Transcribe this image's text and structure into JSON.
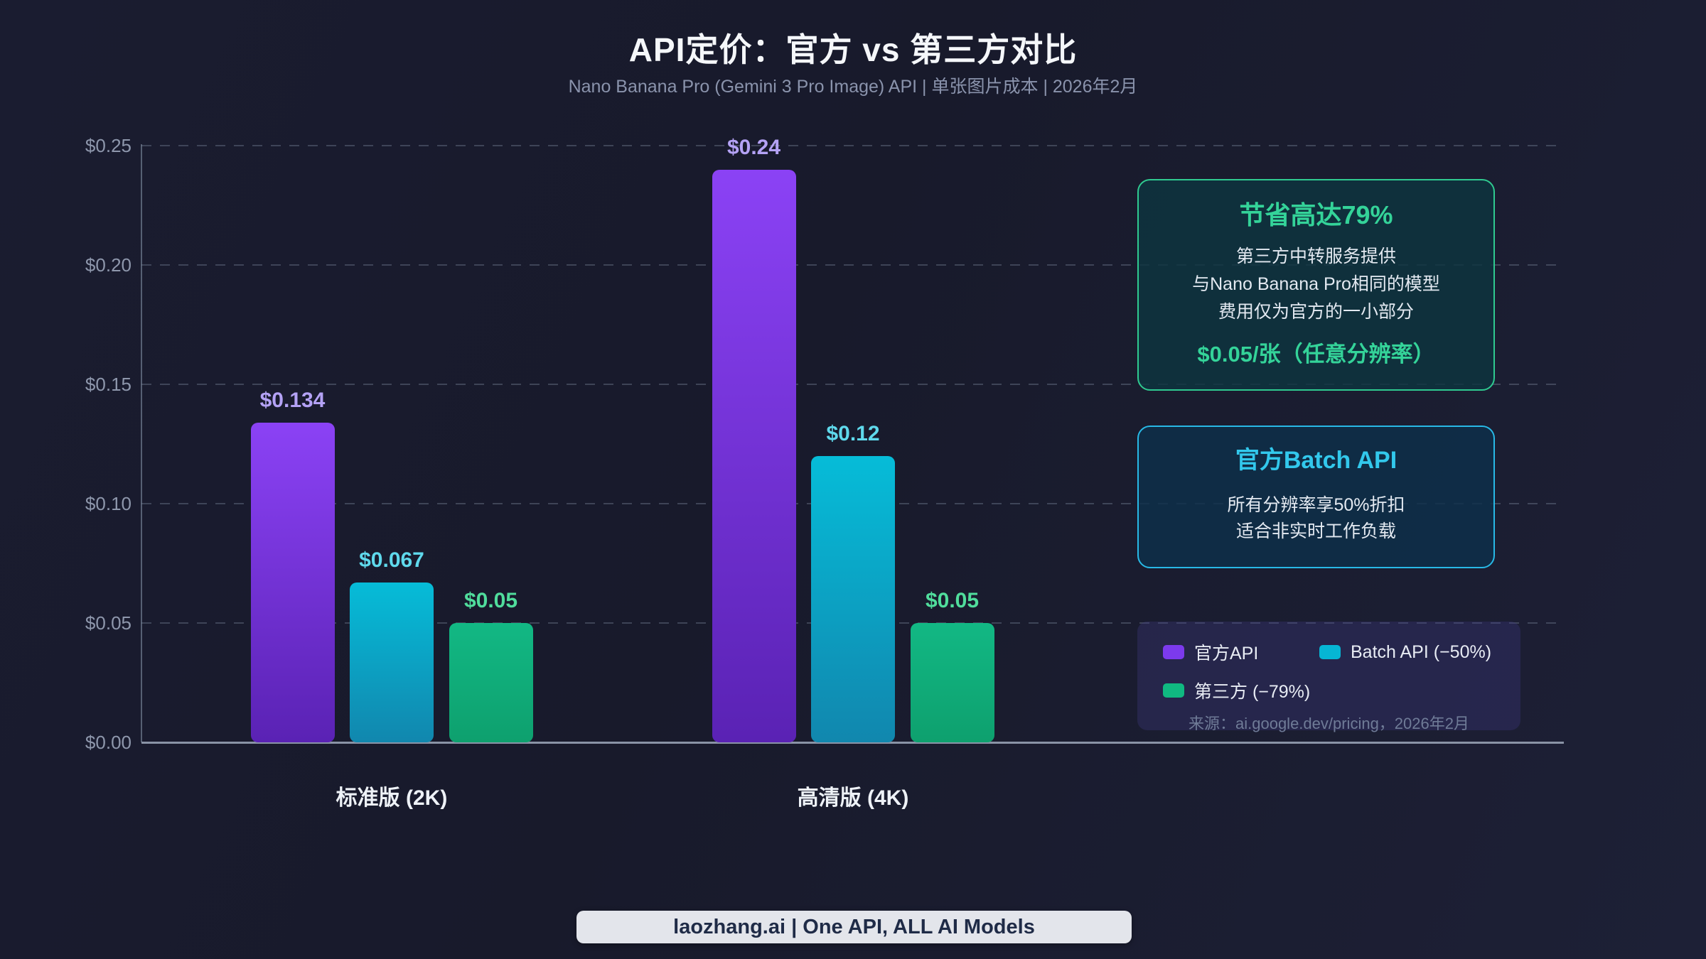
{
  "chart_data": {
    "type": "bar",
    "title": "API定价：官方 vs 第三方对比",
    "subtitle": "Nano Banana Pro (Gemini 3 Pro Image) API | 单张图片成本 | 2026年2月",
    "categories": [
      "标准版 (2K)",
      "高清版 (4K)"
    ],
    "series": [
      {
        "name": "官方API",
        "key": "official",
        "values": [
          0.134,
          0.24
        ],
        "labels": [
          "$0.134",
          "$0.24"
        ],
        "color_top": "#8b42f5",
        "color_bottom": "#5a22b4",
        "label_color": "#b4a2f5"
      },
      {
        "name": "Batch API (−50%)",
        "key": "batch",
        "values": [
          0.067,
          0.12
        ],
        "labels": [
          "$0.067",
          "$0.12"
        ],
        "color_top": "#06bcd8",
        "color_bottom": "#1187ae",
        "label_color": "#5fd9ec"
      },
      {
        "name": "第三方 (−79%)",
        "key": "third",
        "values": [
          0.05,
          0.05
        ],
        "labels": [
          "$0.05",
          "$0.05"
        ],
        "color_top": "#12b884",
        "color_bottom": "#0ea06e",
        "label_color": "#50dd9c"
      }
    ],
    "xlabel": "",
    "ylabel": "",
    "ylim": [
      0,
      0.25
    ],
    "yticks": [
      {
        "value": 0.0,
        "label": "$0.00"
      },
      {
        "value": 0.05,
        "label": "$0.05"
      },
      {
        "value": 0.1,
        "label": "$0.10"
      },
      {
        "value": 0.15,
        "label": "$0.15"
      },
      {
        "value": 0.2,
        "label": "$0.20"
      },
      {
        "value": 0.25,
        "label": "$0.25"
      }
    ],
    "grid": "horizontal-dashed",
    "legend_position": "bottom-right"
  },
  "info_boxes": [
    {
      "title": "节省高达79%",
      "lines": [
        "第三方中转服务提供",
        "与Nano Banana Pro相同的模型",
        "费用仅为官方的一小部分"
      ],
      "highlight": "$0.05/张（任意分辨率）",
      "accent": "#34d399",
      "border": "#2fca90"
    },
    {
      "title": "官方Batch API",
      "lines": [
        "所有分辨率享50%折扣",
        "适合非实时工作负载"
      ],
      "highlight": "",
      "accent": "#32c8ec",
      "border": "#28b9e6"
    }
  ],
  "legend": {
    "items": [
      {
        "label": "官方API",
        "color": "#7c3aed"
      },
      {
        "label": "Batch API (−50%)",
        "color": "#06b6d4"
      },
      {
        "label": "第三方 (−79%)",
        "color": "#10b981"
      }
    ],
    "source": "来源：ai.google.dev/pricing，2026年2月"
  },
  "footer": {
    "badge": "laozhang.ai | One API, ALL AI Models"
  }
}
